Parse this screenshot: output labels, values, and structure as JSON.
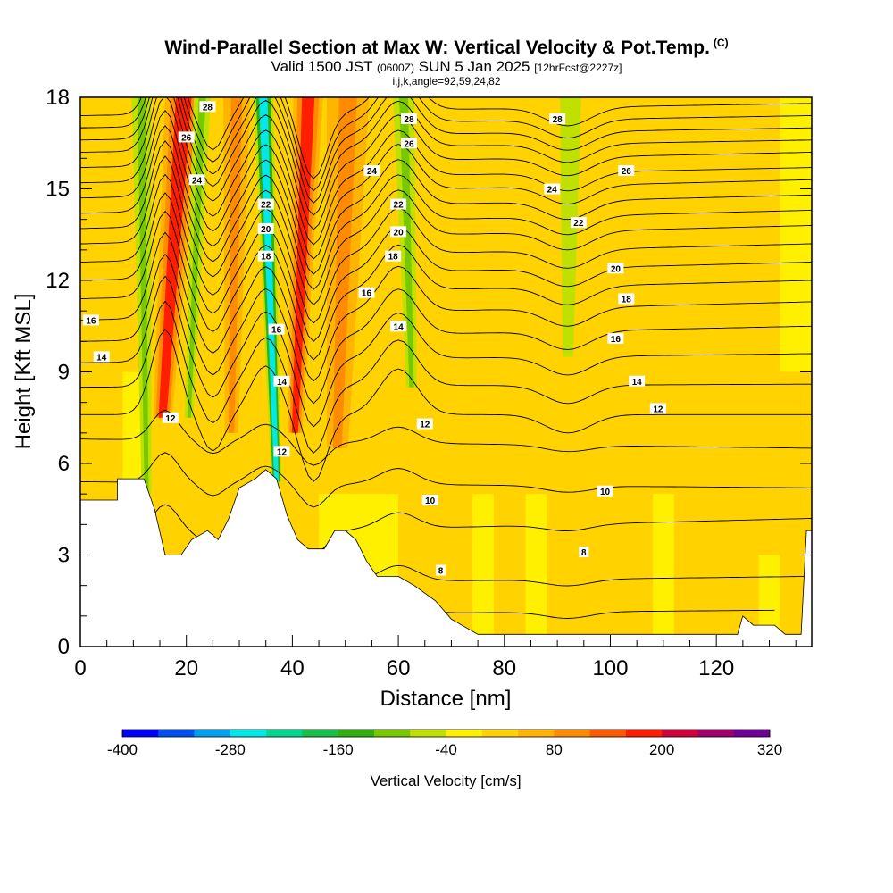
{
  "header": {
    "title": "Wind-Parallel Section at Max W: Vertical Velocity & Pot.Temp.",
    "corner_mark": "(C)",
    "valid_prefix": "Valid 1500 JST",
    "valid_utc": "(0600Z)",
    "valid_date": "SUN 5 Jan 2025",
    "forecast": "[12hrFcst@2227z]",
    "params": "i,j,k,angle=92,59,24,82"
  },
  "chart_data": {
    "type": "heatmap",
    "xlabel": "Distance [nm]",
    "ylabel": "Height [Kft MSL]",
    "xlim": [
      0,
      138
    ],
    "ylim": [
      0,
      18
    ],
    "x_ticks": [
      0,
      20,
      40,
      60,
      80,
      100,
      120
    ],
    "y_ticks": [
      0,
      3,
      6,
      9,
      12,
      15,
      18
    ],
    "colorbar": {
      "label": "Vertical Velocity [cm/s]",
      "tick_labels": [
        "-400",
        "-280",
        "-160",
        "-40",
        "80",
        "200",
        "320"
      ],
      "levels": [
        -400,
        -360,
        -320,
        -280,
        -240,
        -200,
        -160,
        -120,
        -80,
        -40,
        0,
        40,
        80,
        120,
        160,
        200,
        240,
        280,
        320
      ],
      "colors": [
        "#0000ff",
        "#0050f0",
        "#00a0ee",
        "#00e8e8",
        "#00d890",
        "#18c048",
        "#30b010",
        "#78c800",
        "#c0e000",
        "#fff000",
        "#ffd200",
        "#ffb400",
        "#ff8c00",
        "#ff5a00",
        "#ff1e00",
        "#d2003c",
        "#a0006e",
        "#6e0096"
      ]
    },
    "terrain": [
      [
        0,
        4.8
      ],
      [
        7,
        4.8
      ],
      [
        7,
        5.5
      ],
      [
        12,
        5.5
      ],
      [
        14,
        4.5
      ],
      [
        16,
        3.0
      ],
      [
        19,
        3.0
      ],
      [
        21,
        3.5
      ],
      [
        24,
        3.8
      ],
      [
        26,
        3.5
      ],
      [
        28,
        4.2
      ],
      [
        30,
        5.2
      ],
      [
        33,
        5.5
      ],
      [
        35,
        5.8
      ],
      [
        37,
        5.5
      ],
      [
        39,
        4.3
      ],
      [
        41,
        3.5
      ],
      [
        43,
        3.2
      ],
      [
        46,
        3.2
      ],
      [
        48,
        3.8
      ],
      [
        50,
        3.8
      ],
      [
        52,
        3.5
      ],
      [
        54,
        2.8
      ],
      [
        56,
        2.3
      ],
      [
        60,
        2.3
      ],
      [
        63,
        2.0
      ],
      [
        67,
        1.5
      ],
      [
        70,
        0.9
      ],
      [
        75,
        0.4
      ],
      [
        120,
        0.4
      ],
      [
        124,
        0.4
      ],
      [
        125,
        1.0
      ],
      [
        127,
        0.7
      ],
      [
        131,
        0.7
      ],
      [
        133,
        0.4
      ],
      [
        136,
        0.4
      ],
      [
        137,
        3.8
      ],
      [
        138,
        3.8
      ]
    ],
    "velocity_bands": [
      {
        "name": "updraft-1",
        "value": 160,
        "x_bottom": 15.5,
        "x_top": 19.5,
        "half_width": 3.5,
        "bottom": 7.5
      },
      {
        "name": "downdraft-1",
        "value": -120,
        "x_bottom": 12.5,
        "x_top": 11.5,
        "half_width": 1.8,
        "bottom": 5.0
      },
      {
        "name": "downdraft-2",
        "value": -120,
        "x_bottom": 20.5,
        "x_top": 23.0,
        "half_width": 1.6,
        "bottom": 7.5
      },
      {
        "name": "updraft-2",
        "value": 80,
        "x_bottom": 28.5,
        "x_top": 29.5,
        "half_width": 2.5,
        "bottom": 7.0
      },
      {
        "name": "downdraft-core",
        "value": -280,
        "x_bottom": 37.0,
        "x_top": 34.5,
        "half_width": 1.9,
        "bottom": 5.4
      },
      {
        "name": "updraft-core",
        "value": 180,
        "x_bottom": 40.5,
        "x_top": 43.0,
        "half_width": 2.8,
        "bottom": 7.0
      },
      {
        "name": "updraft-3",
        "value": 80,
        "x_bottom": 48.5,
        "x_top": 50.5,
        "half_width": 4.0,
        "bottom": 6.5
      },
      {
        "name": "downdraft-3",
        "value": -120,
        "x_bottom": 62.5,
        "x_top": 61.0,
        "half_width": 2.0,
        "bottom": 8.5
      },
      {
        "name": "downdraft-4",
        "value": -80,
        "x_bottom": 92.0,
        "x_top": 92.5,
        "half_width": 2.0,
        "bottom": 9.5
      }
    ],
    "isentropes": [
      {
        "y_left": 1.0,
        "y_right": 1.2,
        "x_end": 131,
        "label": ""
      },
      {
        "y_left": 2.0,
        "y_right": 2.3,
        "x_end": 138,
        "label": "8"
      },
      {
        "y_left": 3.6,
        "y_right": 4.2,
        "x_end": 138,
        "label": ""
      },
      {
        "y_left": 5.4,
        "y_right": 5.2,
        "x_end": 138,
        "label": "10"
      },
      {
        "y_left": 6.8,
        "y_right": 6.5,
        "x_end": 138,
        "label": ""
      },
      {
        "y_left": 7.6,
        "y_right": 7.6,
        "x_end": 138,
        "label": "12"
      },
      {
        "y_left": 8.5,
        "y_right": 8.6,
        "x_end": 138,
        "label": ""
      },
      {
        "y_left": 9.3,
        "y_right": 9.6,
        "x_end": 138,
        "label": "14"
      },
      {
        "y_left": 10.0,
        "y_right": 10.5,
        "x_end": 138,
        "label": ""
      },
      {
        "y_left": 10.7,
        "y_right": 11.3,
        "x_end": 138,
        "label": "16"
      },
      {
        "y_left": 11.4,
        "y_right": 12.0,
        "x_end": 138,
        "label": ""
      },
      {
        "y_left": 12.0,
        "y_right": 12.6,
        "x_end": 138,
        "label": "18"
      },
      {
        "y_left": 12.6,
        "y_right": 13.2,
        "x_end": 138,
        "label": ""
      },
      {
        "y_left": 13.2,
        "y_right": 13.8,
        "x_end": 138,
        "label": "20"
      },
      {
        "y_left": 13.7,
        "y_right": 14.3,
        "x_end": 138,
        "label": ""
      },
      {
        "y_left": 14.2,
        "y_right": 14.8,
        "x_end": 138,
        "label": "22"
      },
      {
        "y_left": 14.7,
        "y_right": 15.3,
        "x_end": 138,
        "label": ""
      },
      {
        "y_left": 15.2,
        "y_right": 15.7,
        "x_end": 138,
        "label": "24"
      },
      {
        "y_left": 15.7,
        "y_right": 16.2,
        "x_end": 138,
        "label": ""
      },
      {
        "y_left": 16.2,
        "y_right": 16.6,
        "x_end": 138,
        "label": "26"
      },
      {
        "y_left": 16.6,
        "y_right": 17.0,
        "x_end": 138,
        "label": ""
      },
      {
        "y_left": 17.0,
        "y_right": 17.4,
        "x_end": 138,
        "label": "28"
      },
      {
        "y_left": 17.4,
        "y_right": 17.8,
        "x_end": 138,
        "label": ""
      }
    ],
    "contour_labels": [
      {
        "text": "28",
        "x": 24,
        "y": 17.7
      },
      {
        "text": "26",
        "x": 20,
        "y": 16.7
      },
      {
        "text": "24",
        "x": 22,
        "y": 15.3
      },
      {
        "text": "22",
        "x": 35,
        "y": 14.5
      },
      {
        "text": "20",
        "x": 35,
        "y": 13.7
      },
      {
        "text": "18",
        "x": 35,
        "y": 12.8
      },
      {
        "text": "16",
        "x": 37,
        "y": 10.4
      },
      {
        "text": "14",
        "x": 38,
        "y": 8.7
      },
      {
        "text": "12",
        "x": 38,
        "y": 6.4
      },
      {
        "text": "28",
        "x": 62,
        "y": 17.3
      },
      {
        "text": "26",
        "x": 62,
        "y": 16.5
      },
      {
        "text": "24",
        "x": 55,
        "y": 15.6
      },
      {
        "text": "22",
        "x": 60,
        "y": 14.5
      },
      {
        "text": "20",
        "x": 60,
        "y": 13.6
      },
      {
        "text": "18",
        "x": 59,
        "y": 12.8
      },
      {
        "text": "16",
        "x": 54,
        "y": 11.6
      },
      {
        "text": "14",
        "x": 60,
        "y": 10.5
      },
      {
        "text": "12",
        "x": 65,
        "y": 7.3
      },
      {
        "text": "10",
        "x": 66,
        "y": 4.8
      },
      {
        "text": "8",
        "x": 68,
        "y": 2.5
      },
      {
        "text": "28",
        "x": 90,
        "y": 17.3
      },
      {
        "text": "26",
        "x": 103,
        "y": 15.6
      },
      {
        "text": "24",
        "x": 89,
        "y": 15.0
      },
      {
        "text": "22",
        "x": 94,
        "y": 13.9
      },
      {
        "text": "20",
        "x": 101,
        "y": 12.4
      },
      {
        "text": "18",
        "x": 103,
        "y": 11.4
      },
      {
        "text": "16",
        "x": 101,
        "y": 10.1
      },
      {
        "text": "14",
        "x": 105,
        "y": 8.7
      },
      {
        "text": "12",
        "x": 109,
        "y": 7.8
      },
      {
        "text": "10",
        "x": 99,
        "y": 5.1
      },
      {
        "text": "8",
        "x": 95,
        "y": 3.1
      },
      {
        "text": "16",
        "x": 2,
        "y": 10.7
      },
      {
        "text": "14",
        "x": 4,
        "y": 9.5
      },
      {
        "text": "12",
        "x": 17,
        "y": 7.5
      }
    ]
  }
}
